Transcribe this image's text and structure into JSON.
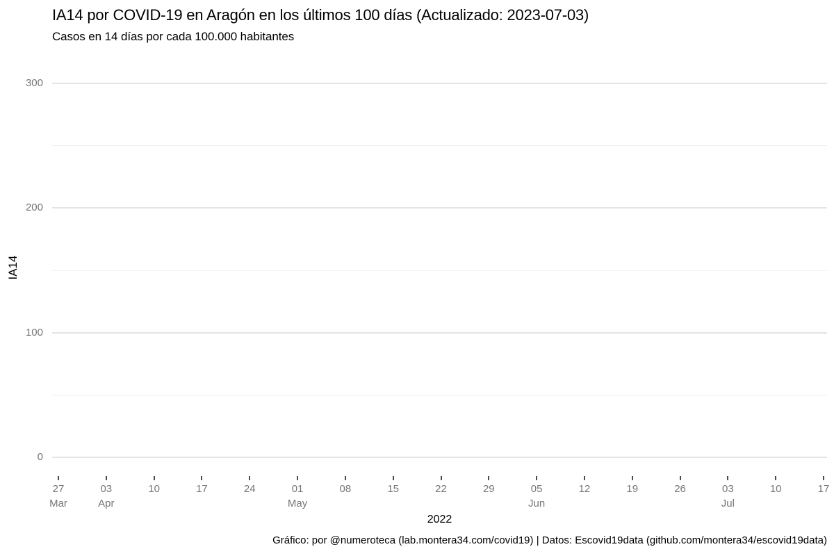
{
  "chart_data": {
    "type": "line",
    "title": "IA14 por COVID-19 en Aragón en los últimos 100 días (Actualizado: 2023-07-03)",
    "subtitle": "Casos en 14 días por cada 100.000 habitantes",
    "ylabel": "IA14",
    "xlabel": "2022",
    "footer": "Gráfico: por @numeroteca (lab.montera34.com/covid19) | Datos: Escovid19data (github.com/montera34/escovid19data)",
    "ylim": [
      0,
      300
    ],
    "y_major_ticks": [
      0,
      100,
      200,
      300
    ],
    "y_minor_ticks": [
      50,
      150,
      250
    ],
    "x_ticks": [
      {
        "day": "27",
        "month": "Mar"
      },
      {
        "day": "03",
        "month": "Apr"
      },
      {
        "day": "10",
        "month": ""
      },
      {
        "day": "17",
        "month": ""
      },
      {
        "day": "24",
        "month": ""
      },
      {
        "day": "01",
        "month": "May"
      },
      {
        "day": "08",
        "month": ""
      },
      {
        "day": "15",
        "month": ""
      },
      {
        "day": "22",
        "month": ""
      },
      {
        "day": "29",
        "month": ""
      },
      {
        "day": "05",
        "month": "Jun"
      },
      {
        "day": "12",
        "month": ""
      },
      {
        "day": "19",
        "month": ""
      },
      {
        "day": "26",
        "month": ""
      },
      {
        "day": "03",
        "month": "Jul"
      },
      {
        "day": "10",
        "month": ""
      },
      {
        "day": "17",
        "month": ""
      }
    ],
    "series": [],
    "grid": true,
    "legend": "none",
    "colors": {
      "text": "#000000",
      "tick_label": "#757575",
      "tick_mark": "#4d4d4d",
      "grid_major": "#e4e4e4",
      "grid_minor": "#f0f0f0",
      "background": "#ffffff"
    }
  }
}
